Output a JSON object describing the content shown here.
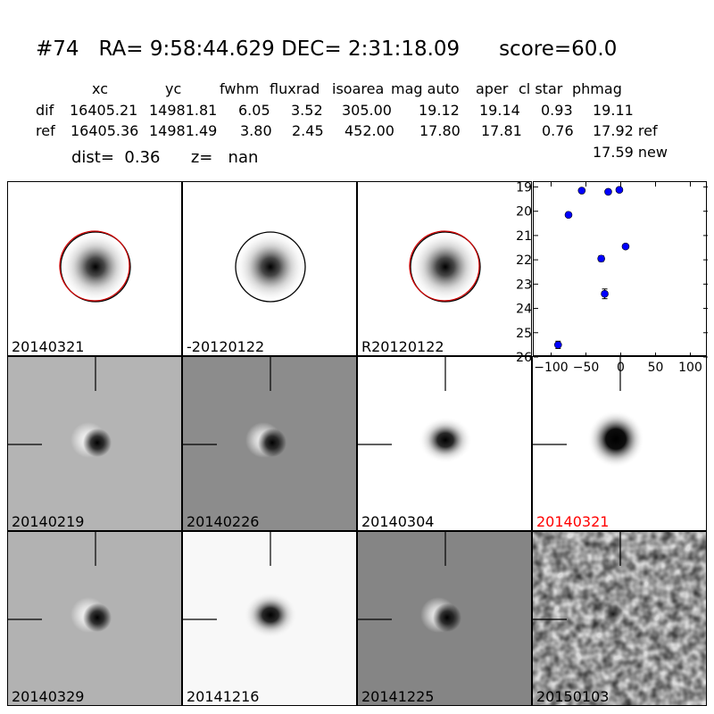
{
  "header": {
    "object_id": "#74",
    "ra_label": "RA=",
    "ra": "9:58:44.629",
    "dec_label": "DEC=",
    "dec": "2:31:18.09",
    "score_label": "score=",
    "score": "60.0"
  },
  "stats": {
    "columns": [
      "xc",
      "yc",
      "fwhm",
      "fluxrad",
      "isoarea",
      "mag auto",
      "aper",
      "cl star",
      "phmag"
    ],
    "rows": [
      {
        "label": "dif",
        "values": [
          "16405.21",
          "14981.81",
          "6.05",
          "3.52",
          "305.00",
          "19.12",
          "19.14",
          "0.93",
          "19.11"
        ]
      },
      {
        "label": "ref",
        "values": [
          "16405.36",
          "14981.49",
          "3.80",
          "2.45",
          "452.00",
          "17.80",
          "17.81",
          "0.76",
          "17.92 ref"
        ]
      }
    ],
    "extra_phmag": "17.59 new",
    "dist_label": "dist=",
    "dist": "0.36",
    "z_label": "z=",
    "z": "nan"
  },
  "stamps": [
    {
      "label": "20140321",
      "label_color": "#000000",
      "bg": "white",
      "kind": "ring_red"
    },
    {
      "label": "-20120122",
      "label_color": "#000000",
      "bg": "white",
      "kind": "ring_black"
    },
    {
      "label": "R20120122",
      "label_color": "#000000",
      "bg": "white",
      "kind": "ring_red"
    },
    {
      "label": "20140219",
      "label_color": "#000000",
      "bg": "#b4b4b4",
      "kind": "dipole"
    },
    {
      "label": "20140226",
      "label_color": "#000000",
      "bg": "#8c8c8c",
      "kind": "dipole"
    },
    {
      "label": "20140304",
      "label_color": "#000000",
      "bg": "#ffffff",
      "kind": "star"
    },
    {
      "label": "20140321",
      "label_color": "#ff0000",
      "bg": "#ffffff",
      "kind": "star_big"
    },
    {
      "label": "20140329",
      "label_color": "#000000",
      "bg": "#b2b2b2",
      "kind": "dipole"
    },
    {
      "label": "20141216",
      "label_color": "#000000",
      "bg": "#f8f8f8",
      "kind": "star"
    },
    {
      "label": "20141225",
      "label_color": "#000000",
      "bg": "#858585",
      "kind": "dipole"
    },
    {
      "label": "20150103",
      "label_color": "#000000",
      "bg": "noise",
      "kind": "faint"
    }
  ],
  "chart_data": {
    "type": "scatter",
    "title": "",
    "xlabel": "",
    "ylabel": "",
    "xlim": [
      -125,
      125
    ],
    "ylim": [
      26,
      18.8
    ],
    "y_inverted": true,
    "xticks": [
      -100,
      -50,
      0,
      50,
      100
    ],
    "yticks": [
      19,
      20,
      21,
      22,
      23,
      24,
      25,
      26
    ],
    "marker_color": "#0000ff",
    "points": [
      {
        "x": -90,
        "y": 25.5,
        "err": 0.15
      },
      {
        "x": -75,
        "y": 20.15,
        "err": 0.05
      },
      {
        "x": -56,
        "y": 19.15,
        "err": 0.05
      },
      {
        "x": -28,
        "y": 21.95,
        "err": 0.12
      },
      {
        "x": -23,
        "y": 23.4,
        "err": 0.2
      },
      {
        "x": -18,
        "y": 19.2,
        "err": 0.05
      },
      {
        "x": -2,
        "y": 19.12,
        "err": 0.05
      },
      {
        "x": 7,
        "y": 21.45,
        "err": 0.08
      }
    ]
  }
}
